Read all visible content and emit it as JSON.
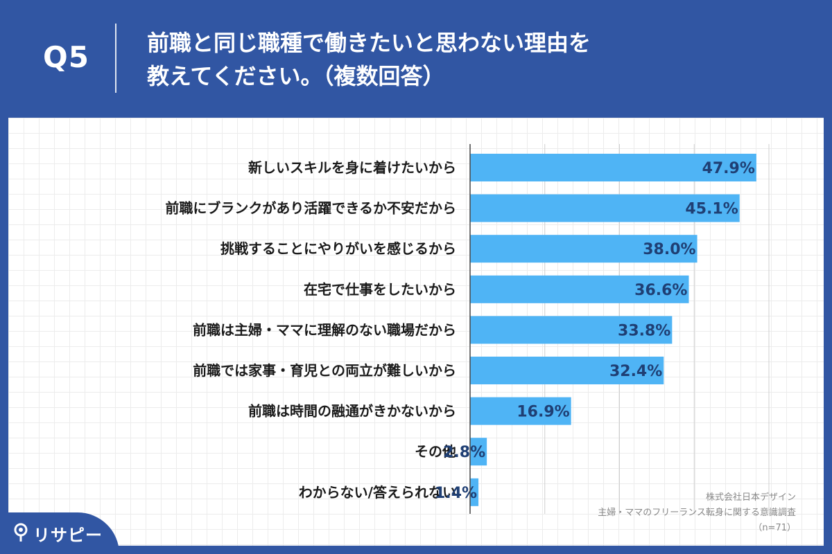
{
  "header": {
    "question_no": "Q5",
    "title_line1": "前職と同じ職種で働きたいと思わない理由を",
    "title_line2": "教えてください。（複数回答）"
  },
  "chart_data": {
    "type": "bar",
    "orientation": "horizontal",
    "categories": [
      "新しいスキルを身に着けたいから",
      "前職にブランクがあり活躍できるか不安だから",
      "挑戦することにやりがいを感じるから",
      "在宅で仕事をしたいから",
      "前職は主婦・ママに理解のない職場だから",
      "前職では家事・育児との両立が難しいから",
      "前職は時間の融通がきかないから",
      "その他",
      "わからない/答えられない"
    ],
    "values": [
      47.9,
      45.1,
      38.0,
      36.6,
      33.8,
      32.4,
      16.9,
      2.8,
      1.4
    ],
    "value_labels": [
      "47.9%",
      "45.1%",
      "38.0%",
      "36.6%",
      "33.8%",
      "32.4%",
      "16.9%",
      "2.8%",
      "1.4%"
    ],
    "xlim": [
      0,
      50
    ],
    "grid": true,
    "bar_color": "#4fb4f5",
    "label_color": "#1f3f74"
  },
  "source": {
    "line1": "株式会社日本デザイン",
    "line2": "主婦・ママのフリーランス転身に関する意識調査",
    "line3": "（n=71）"
  },
  "brand": {
    "name": "リサピー",
    "icon": "pin-icon",
    "color": "#3156a3"
  }
}
